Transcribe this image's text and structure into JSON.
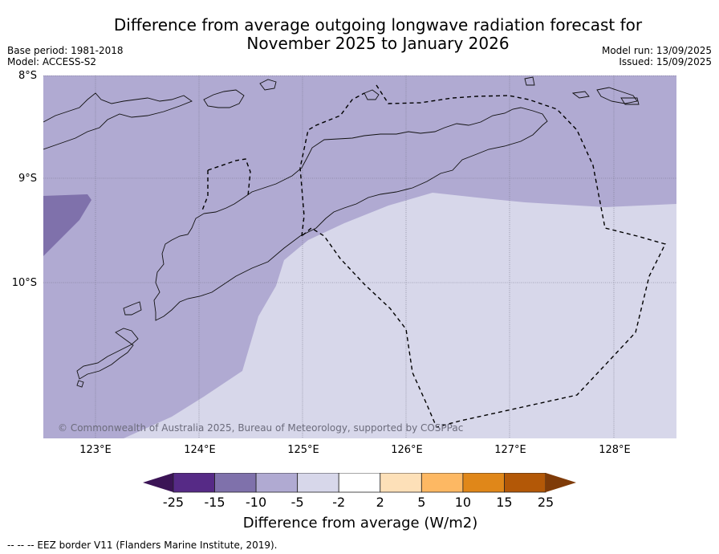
{
  "title_line1": "Difference from average outgoing longwave radiation forecast for",
  "title_line2": "November 2025 to January 2026",
  "base_period": "Base period: 1981-2018",
  "model": "Model: ACCESS-S2",
  "model_run": "Model run: 13/09/2025",
  "issued": "Issued: 15/09/2025",
  "latitude_labels": [
    "8°S",
    "9°S",
    "10°S"
  ],
  "longitude_labels": [
    "123°E",
    "124°E",
    "125°E",
    "126°E",
    "127°E",
    "128°E"
  ],
  "copyright": "© Commonwealth of Australia 2025, Bureau of Meteorology, supported by COSPPac",
  "colorbar": {
    "title": "Difference from average (W/m2)",
    "tick_labels": [
      "-25",
      "-15",
      "-10",
      "-5",
      "-2",
      "2",
      "5",
      "10",
      "15",
      "25"
    ],
    "colors": [
      "#3b1456",
      "#562a86",
      "#7f71ab",
      "#b0aad2",
      "#d7d7ea",
      "#ffffff",
      "#fde0b8",
      "#fdb863",
      "#e08719",
      "#b35807",
      "#7f3b08"
    ]
  },
  "regions": {
    "strong_negative_color": "#7f71ab",
    "negative_color": "#b0aad2",
    "weak_negative_color": "#d7d7ea"
  },
  "footnote": "-- -- -- EEZ border V11 (Flanders Marine Institute, 2019)."
}
